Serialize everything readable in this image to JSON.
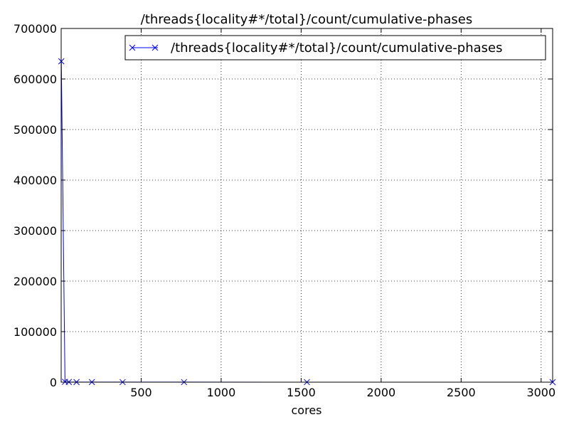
{
  "chart_data": {
    "type": "line",
    "title": "/threads{locality#*/total}/count/cumulative-phases",
    "xlabel": "cores",
    "ylabel": "",
    "xlim": [
      0,
      3072
    ],
    "ylim": [
      0,
      700000
    ],
    "x_ticks": [
      500,
      1000,
      1500,
      2000,
      2500,
      3000
    ],
    "x_tick_labels": [
      "500",
      "1000",
      "1500",
      "2000",
      "2500",
      "3000"
    ],
    "y_ticks": [
      0,
      100000,
      200000,
      300000,
      400000,
      500000,
      600000,
      700000
    ],
    "y_tick_labels": [
      "0",
      "100000",
      "200000",
      "300000",
      "400000",
      "500000",
      "600000",
      "700000"
    ],
    "grid": true,
    "legend_position": "top-right",
    "series": [
      {
        "name": "/threads{locality#*/total}/count/cumulative-phases",
        "color": "#0000ff",
        "marker": "x",
        "x": [
          1,
          24,
          48,
          96,
          192,
          384,
          768,
          1536,
          3072
        ],
        "y": [
          635000,
          600,
          300,
          200,
          150,
          100,
          80,
          60,
          50
        ]
      }
    ]
  }
}
